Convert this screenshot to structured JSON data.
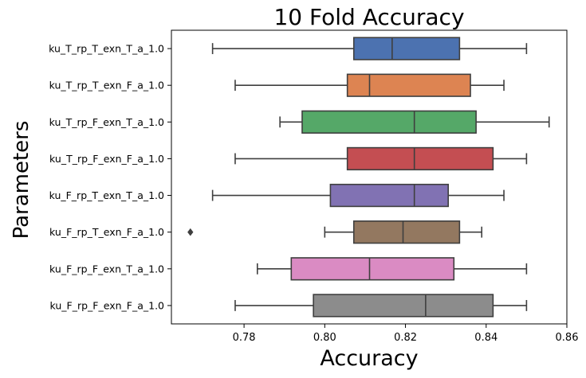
{
  "chart_data": {
    "type": "box",
    "title": "10 Fold Accuracy",
    "xlabel": "Accuracy",
    "ylabel": "Parameters",
    "xlim": [
      0.762,
      0.86
    ],
    "xticks": [
      0.78,
      0.8,
      0.82,
      0.84,
      0.86
    ],
    "xtick_labels": [
      "0.78",
      "0.80",
      "0.82",
      "0.84",
      "0.86"
    ],
    "grid": false,
    "legend": "none",
    "categories": [
      "ku_T_rp_T_exn_T_a_1.0",
      "ku_T_rp_T_exn_F_a_1.0",
      "ku_T_rp_F_exn_T_a_1.0",
      "ku_T_rp_F_exn_F_a_1.0",
      "ku_F_rp_T_exn_T_a_1.0",
      "ku_F_rp_T_exn_F_a_1.0",
      "ku_F_rp_F_exn_T_a_1.0",
      "ku_F_rp_F_exn_F_a_1.0"
    ],
    "boxes": [
      {
        "whisker_low": 0.7722,
        "q1": 0.8072,
        "median": 0.8167,
        "q3": 0.8334,
        "whisker_high": 0.85,
        "outliers": [],
        "color": "#4c72b0"
      },
      {
        "whisker_low": 0.7778,
        "q1": 0.8056,
        "median": 0.8111,
        "q3": 0.8361,
        "whisker_high": 0.8444,
        "outliers": [],
        "color": "#dd8452"
      },
      {
        "whisker_low": 0.7889,
        "q1": 0.7944,
        "median": 0.8222,
        "q3": 0.8375,
        "whisker_high": 0.8556,
        "outliers": [],
        "color": "#55a868"
      },
      {
        "whisker_low": 0.7778,
        "q1": 0.8056,
        "median": 0.8222,
        "q3": 0.8417,
        "whisker_high": 0.85,
        "outliers": [],
        "color": "#c44e52"
      },
      {
        "whisker_low": 0.7722,
        "q1": 0.8014,
        "median": 0.8222,
        "q3": 0.8306,
        "whisker_high": 0.8444,
        "outliers": [],
        "color": "#8172b3"
      },
      {
        "whisker_low": 0.8,
        "q1": 0.8072,
        "median": 0.8194,
        "q3": 0.8334,
        "whisker_high": 0.8389,
        "outliers": [
          0.7667
        ],
        "color": "#937860"
      },
      {
        "whisker_low": 0.7833,
        "q1": 0.7917,
        "median": 0.8111,
        "q3": 0.832,
        "whisker_high": 0.85,
        "outliers": [],
        "color": "#da8bc3"
      },
      {
        "whisker_low": 0.7778,
        "q1": 0.7972,
        "median": 0.825,
        "q3": 0.8417,
        "whisker_high": 0.85,
        "outliers": [],
        "color": "#8c8c8c"
      }
    ]
  }
}
